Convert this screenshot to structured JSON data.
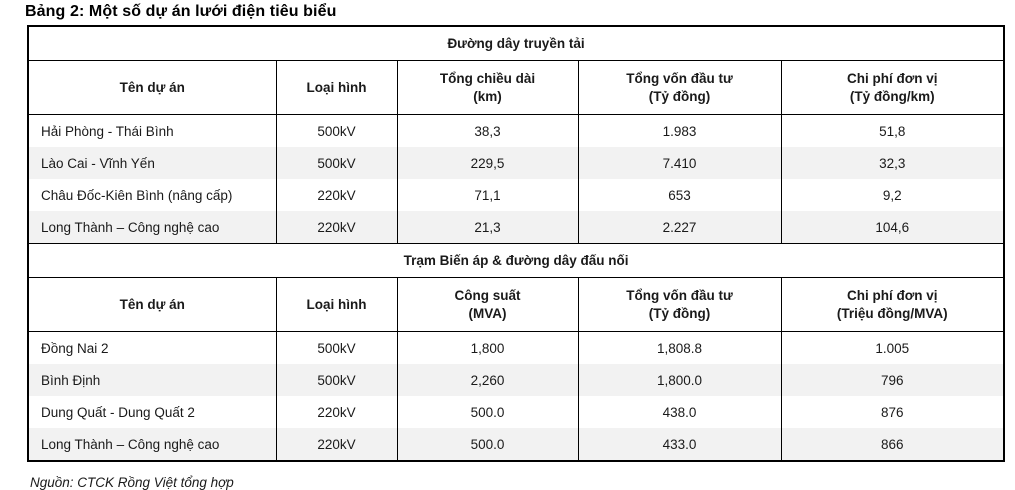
{
  "title": "Bảng 2: Một số dự án lưới điện tiêu biểu",
  "source": "Nguồn: CTCK Rồng Việt tổng hợp",
  "table": {
    "sections": [
      {
        "header": "Đường dây truyền tải",
        "columns": [
          "Tên dự án",
          "Loại hình",
          "Tổng chiều dài\n(km)",
          "Tổng vốn đầu tư\n(Tỷ đồng)",
          "Chi phí đơn vị\n(Tỷ đồng/km)"
        ],
        "rows": [
          [
            "Hải Phòng - Thái Bình",
            "500kV",
            "38,3",
            "1.983",
            "51,8"
          ],
          [
            "Lào Cai - Vĩnh Yến",
            "500kV",
            "229,5",
            "7.410",
            "32,3"
          ],
          [
            "Châu Đốc-Kiên Bình (nâng cấp)",
            "220kV",
            "71,1",
            "653",
            "9,2"
          ],
          [
            "Long Thành – Công nghệ cao",
            "220kV",
            "21,3",
            "2.227",
            "104,6"
          ]
        ]
      },
      {
        "header": "Trạm Biến áp & đường dây đấu nối",
        "columns": [
          "Tên dự án",
          "Loại hình",
          "Công suất\n(MVA)",
          "Tổng vốn đầu tư\n(Tỷ đồng)",
          "Chi phí đơn vị\n(Triệu đồng/MVA)"
        ],
        "rows": [
          [
            "Đồng Nai 2",
            "500kV",
            "1,800",
            "1,808.8",
            "1.005"
          ],
          [
            "Bình Định",
            "500kV",
            "2,260",
            "1,800.0",
            "796"
          ],
          [
            "Dung Quất - Dung Quất 2",
            "220kV",
            "500.0",
            "438.0",
            "876"
          ],
          [
            "Long Thành – Công nghệ cao",
            "220kV",
            "500.0",
            "433.0",
            "866"
          ]
        ]
      }
    ]
  },
  "colors": {
    "border": "#000000",
    "zebra_row": "#f2f2f2",
    "text": "#1a1a1a"
  }
}
